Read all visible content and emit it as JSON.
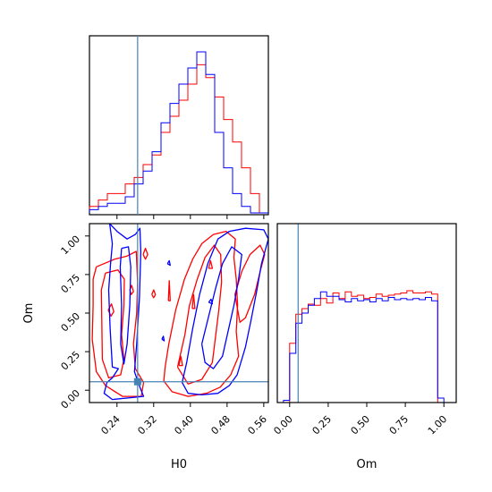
{
  "chart_data": [
    {
      "type": "histogram",
      "panel": "H0 marginal",
      "xlim": [
        0.18,
        0.57
      ],
      "bin_edges": [
        0.18,
        0.1995,
        0.219,
        0.2385,
        0.258,
        0.2775,
        0.297,
        0.3165,
        0.336,
        0.3555,
        0.375,
        0.3945,
        0.414,
        0.4335,
        0.453,
        0.4725,
        0.492,
        0.5115,
        0.531,
        0.5505,
        0.57
      ],
      "series": [
        {
          "color": "#ff0000",
          "heights": [
            4,
            8,
            12,
            12,
            18,
            22,
            30,
            36,
            50,
            60,
            70,
            80,
            92,
            84,
            72,
            58,
            44,
            28,
            12,
            0
          ]
        },
        {
          "color": "#0000ff",
          "heights": [
            2,
            4,
            6,
            6,
            10,
            18,
            26,
            38,
            56,
            68,
            80,
            90,
            100,
            86,
            50,
            28,
            12,
            4,
            0,
            0
          ]
        }
      ],
      "truth": 0.285
    },
    {
      "type": "contour",
      "panel": "Om vs H0",
      "xlabel": "H0",
      "ylabel": "Om",
      "xlim": [
        0.18,
        0.57
      ],
      "ylim": [
        -0.08,
        1.08
      ],
      "xticks": [
        "0.24",
        "0.32",
        "0.40",
        "0.48",
        "0.56"
      ],
      "xtick_values": [
        0.24,
        0.32,
        0.4,
        0.48,
        0.56
      ],
      "yticks": [
        "0.00",
        "0.25",
        "0.50",
        "0.75",
        "1.00"
      ],
      "ytick_values": [
        0.0,
        0.25,
        0.5,
        0.75,
        1.0
      ],
      "truth": {
        "H0": 0.285,
        "Om": 0.055
      },
      "series": [
        {
          "color": "#ff0000",
          "contours": [
            [
              [
                0.195,
                0.8
              ],
              [
                0.235,
                0.85
              ],
              [
                0.262,
                0.87
              ],
              [
                0.282,
                0.9
              ],
              [
                0.285,
                0.7
              ],
              [
                0.283,
                0.5
              ],
              [
                0.276,
                0.3
              ],
              [
                0.28,
                0.14
              ],
              [
                0.298,
                0.05
              ],
              [
                0.293,
                -0.04
              ],
              [
                0.252,
                -0.04
              ],
              [
                0.215,
                0.03
              ],
              [
                0.195,
                0.12
              ],
              [
                0.186,
                0.33
              ],
              [
                0.188,
                0.55
              ],
              [
                0.188,
                0.72
              ],
              [
                0.195,
                0.8
              ]
            ],
            [
              [
                0.215,
                0.76
              ],
              [
                0.242,
                0.78
              ],
              [
                0.256,
                0.72
              ],
              [
                0.255,
                0.55
              ],
              [
                0.25,
                0.36
              ],
              [
                0.255,
                0.2
              ],
              [
                0.248,
                0.1
              ],
              [
                0.222,
                0.08
              ],
              [
                0.208,
                0.2
              ],
              [
                0.207,
                0.45
              ],
              [
                0.206,
                0.65
              ],
              [
                0.215,
                0.76
              ]
            ],
            [
              [
                0.345,
                0.15
              ],
              [
                0.353,
                0.3
              ],
              [
                0.368,
                0.52
              ],
              [
                0.387,
                0.72
              ],
              [
                0.405,
                0.85
              ],
              [
                0.425,
                0.95
              ],
              [
                0.45,
                1.01
              ],
              [
                0.478,
                1.03
              ],
              [
                0.498,
                0.98
              ],
              [
                0.495,
                0.86
              ],
              [
                0.5,
                0.72
              ],
              [
                0.503,
                0.55
              ],
              [
                0.5,
                0.38
              ],
              [
                0.505,
                0.22
              ],
              [
                0.488,
                0.1
              ],
              [
                0.465,
                0.02
              ],
              [
                0.435,
                -0.02
              ],
              [
                0.395,
                -0.04
              ],
              [
                0.36,
                -0.01
              ],
              [
                0.342,
                0.06
              ],
              [
                0.345,
                0.15
              ]
            ],
            [
              [
                0.372,
                0.15
              ],
              [
                0.388,
                0.36
              ],
              [
                0.398,
                0.55
              ],
              [
                0.415,
                0.72
              ],
              [
                0.432,
                0.86
              ],
              [
                0.452,
                0.94
              ],
              [
                0.466,
                0.88
              ],
              [
                0.468,
                0.7
              ],
              [
                0.462,
                0.52
              ],
              [
                0.455,
                0.35
              ],
              [
                0.448,
                0.18
              ],
              [
                0.425,
                0.07
              ],
              [
                0.395,
                0.04
              ],
              [
                0.372,
                0.15
              ]
            ],
            [
              [
                0.497,
                0.62
              ],
              [
                0.512,
                0.77
              ],
              [
                0.53,
                0.88
              ],
              [
                0.552,
                0.94
              ],
              [
                0.562,
                0.88
              ],
              [
                0.553,
                0.78
              ],
              [
                0.54,
                0.62
              ],
              [
                0.52,
                0.47
              ],
              [
                0.508,
                0.44
              ],
              [
                0.497,
                0.62
              ]
            ],
            [
              [
                0.221,
                0.52
              ],
              [
                0.228,
                0.56
              ],
              [
                0.233,
                0.51
              ],
              [
                0.227,
                0.48
              ],
              [
                0.221,
                0.52
              ]
            ],
            [
              [
                0.268,
                0.65
              ],
              [
                0.272,
                0.68
              ],
              [
                0.276,
                0.64
              ],
              [
                0.271,
                0.62
              ],
              [
                0.268,
                0.65
              ]
            ],
            [
              [
                0.297,
                0.88
              ],
              [
                0.302,
                0.92
              ],
              [
                0.307,
                0.88
              ],
              [
                0.302,
                0.85
              ],
              [
                0.297,
                0.88
              ]
            ],
            [
              [
                0.316,
                0.62
              ],
              [
                0.32,
                0.65
              ],
              [
                0.324,
                0.62
              ],
              [
                0.32,
                0.6
              ],
              [
                0.316,
                0.62
              ]
            ],
            [
              [
                0.352,
                0.58
              ],
              [
                0.354,
                0.71
              ],
              [
                0.356,
                0.58
              ],
              [
                0.352,
                0.58
              ]
            ],
            [
              [
                0.375,
                0.16
              ],
              [
                0.379,
                0.22
              ],
              [
                0.383,
                0.16
              ],
              [
                0.375,
                0.16
              ]
            ],
            [
              [
                0.404,
                0.53
              ],
              [
                0.407,
                0.62
              ],
              [
                0.41,
                0.53
              ],
              [
                0.404,
                0.53
              ]
            ],
            [
              [
                0.44,
                0.79
              ],
              [
                0.444,
                0.84
              ],
              [
                0.448,
                0.79
              ],
              [
                0.44,
                0.79
              ]
            ]
          ]
        },
        {
          "color": "#0000ff",
          "contours": [
            [
              [
                0.224,
                1.08
              ],
              [
                0.24,
                1.03
              ],
              [
                0.262,
                0.98
              ],
              [
                0.28,
                1.01
              ],
              [
                0.29,
                1.05
              ],
              [
                0.292,
                0.9
              ],
              [
                0.289,
                0.6
              ],
              [
                0.283,
                0.3
              ],
              [
                0.278,
                0.12
              ],
              [
                0.29,
                0.02
              ],
              [
                0.298,
                -0.04
              ],
              [
                0.23,
                -0.06
              ],
              [
                0.212,
                -0.02
              ],
              [
                0.218,
                0.05
              ],
              [
                0.23,
                0.08
              ],
              [
                0.243,
                0.14
              ],
              [
                0.23,
                0.15
              ],
              [
                0.225,
                0.4
              ],
              [
                0.222,
                0.65
              ],
              [
                0.226,
                0.82
              ],
              [
                0.23,
                0.95
              ],
              [
                0.224,
                1.08
              ]
            ],
            [
              [
                0.25,
                0.92
              ],
              [
                0.265,
                0.93
              ],
              [
                0.27,
                0.8
              ],
              [
                0.268,
                0.55
              ],
              [
                0.262,
                0.3
              ],
              [
                0.255,
                0.17
              ],
              [
                0.248,
                0.3
              ],
              [
                0.25,
                0.55
              ],
              [
                0.247,
                0.8
              ],
              [
                0.25,
                0.92
              ]
            ],
            [
              [
                0.382,
                0.05
              ],
              [
                0.392,
                0.18
              ],
              [
                0.405,
                0.4
              ],
              [
                0.42,
                0.62
              ],
              [
                0.438,
                0.82
              ],
              [
                0.46,
                0.98
              ],
              [
                0.485,
                1.03
              ],
              [
                0.52,
                1.05
              ],
              [
                0.56,
                1.04
              ],
              [
                0.57,
                0.98
              ],
              [
                0.555,
                0.82
              ],
              [
                0.545,
                0.65
              ],
              [
                0.532,
                0.45
              ],
              [
                0.52,
                0.28
              ],
              [
                0.502,
                0.1
              ],
              [
                0.485,
                0.03
              ],
              [
                0.46,
                -0.02
              ],
              [
                0.425,
                -0.03
              ],
              [
                0.395,
                -0.02
              ],
              [
                0.382,
                0.05
              ]
            ],
            [
              [
                0.425,
                0.3
              ],
              [
                0.44,
                0.48
              ],
              [
                0.455,
                0.66
              ],
              [
                0.47,
                0.82
              ],
              [
                0.49,
                0.93
              ],
              [
                0.512,
                0.88
              ],
              [
                0.505,
                0.72
              ],
              [
                0.495,
                0.55
              ],
              [
                0.482,
                0.38
              ],
              [
                0.47,
                0.22
              ],
              [
                0.45,
                0.14
              ],
              [
                0.432,
                0.18
              ],
              [
                0.425,
                0.3
              ]
            ],
            [
              [
                0.338,
                0.33
              ],
              [
                0.341,
                0.35
              ],
              [
                0.343,
                0.32
              ],
              [
                0.338,
                0.33
              ]
            ],
            [
              [
                0.44,
                0.57
              ],
              [
                0.445,
                0.59
              ],
              [
                0.448,
                0.56
              ],
              [
                0.44,
                0.57
              ]
            ],
            [
              [
                0.35,
                0.82
              ],
              [
                0.354,
                0.84
              ],
              [
                0.356,
                0.81
              ],
              [
                0.35,
                0.82
              ]
            ]
          ]
        }
      ]
    },
    {
      "type": "histogram",
      "panel": "Om marginal",
      "xlabel": "Om",
      "xlim": [
        -0.08,
        1.08
      ],
      "xticks": [
        "0.00",
        "0.25",
        "0.50",
        "0.75",
        "1.00"
      ],
      "xtick_values": [
        0.0,
        0.25,
        0.5,
        0.75,
        1.0
      ],
      "bin_edges": [
        -0.04,
        0.0,
        0.04,
        0.08,
        0.12,
        0.16,
        0.2,
        0.24,
        0.28,
        0.32,
        0.36,
        0.4,
        0.44,
        0.48,
        0.52,
        0.56,
        0.6,
        0.64,
        0.68,
        0.72,
        0.76,
        0.8,
        0.84,
        0.88,
        0.92,
        0.96,
        1.0,
        1.04
      ],
      "series": [
        {
          "color": "#ff0000",
          "heights": [
            0,
            53,
            79,
            84,
            88,
            87,
            93,
            89,
            98,
            93,
            99,
            95,
            96,
            93,
            94,
            97,
            95,
            96,
            97,
            98,
            100,
            98,
            98,
            99,
            97,
            0,
            0
          ]
        },
        {
          "color": "#0000ff",
          "heights": [
            2,
            44,
            71,
            80,
            87,
            93,
            99,
            95,
            95,
            92,
            90,
            93,
            91,
            92,
            90,
            93,
            91,
            94,
            92,
            93,
            92,
            93,
            92,
            94,
            91,
            4,
            0
          ]
        }
      ],
      "ylim": [
        0,
        160
      ],
      "truth": 0.055
    }
  ],
  "colors": {
    "truth_line": "#4682b4",
    "series_a": "#ff0000",
    "series_b": "#0000ff"
  }
}
